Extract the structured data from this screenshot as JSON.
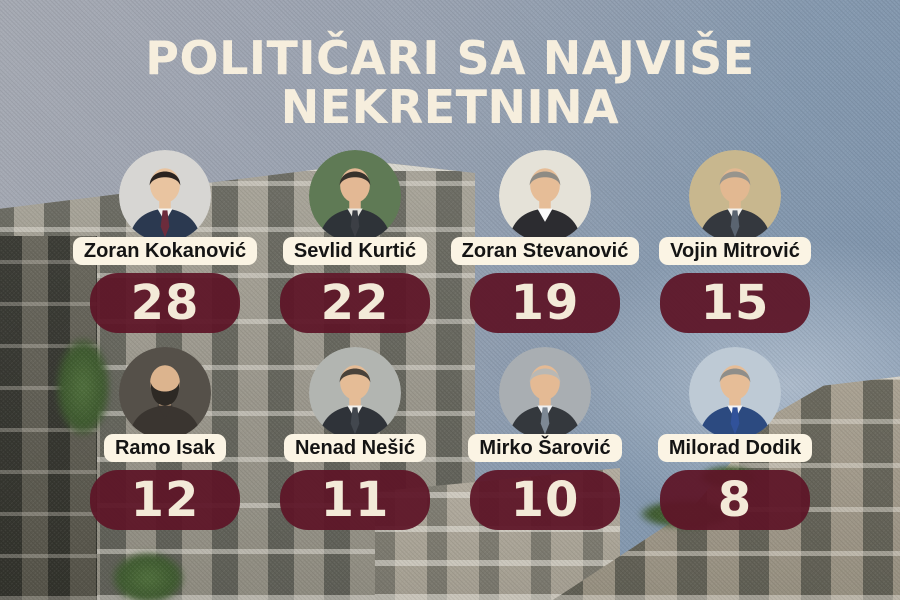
{
  "title": {
    "line1": "POLITIČARI SA NAJVIŠE",
    "line2": "NEKRETNINA"
  },
  "chart_data": {
    "type": "table",
    "title": "POLITIČARI SA NAJVIŠE NEKRETNINA",
    "categories": [
      "Zoran Kokanović",
      "Sevlid Kurtić",
      "Zoran Stevanović",
      "Vojin Mitrović",
      "Ramo Isak",
      "Nenad Nešić",
      "Mirko Šarović",
      "Milorad Dodik"
    ],
    "values": [
      28,
      22,
      19,
      15,
      12,
      11,
      10,
      8
    ],
    "layout": "2 rows x 4 columns, ranked descending left-to-right, top-to-bottom"
  },
  "politicians": [
    {
      "name": "Zoran Kokanović",
      "value": "28",
      "avatar": {
        "bg": "#d7d6d3",
        "hair": "#2a2320",
        "skin": "#e9c4a0",
        "suit": "#2b3950",
        "shirt": "#f4f4f2",
        "tie": "#6c2c3c",
        "bald": false,
        "beard": null
      }
    },
    {
      "name": "Sevlid Kurtić",
      "value": "22",
      "avatar": {
        "bg": "#5f7a55",
        "hair": "#37322c",
        "skin": "#e3b894",
        "suit": "#2e3338",
        "shirt": "#e8e6e0",
        "tie": "#3c3f45",
        "bald": false,
        "beard": null
      }
    },
    {
      "name": "Zoran Stevanović",
      "value": "19",
      "avatar": {
        "bg": "#e5e2d8",
        "hair": "#8e8b84",
        "skin": "#e6bd97",
        "suit": "#2c2c30",
        "shirt": "#fafafa",
        "tie": null,
        "bald": false,
        "beard": null
      }
    },
    {
      "name": "Vojin Mitrović",
      "value": "15",
      "avatar": {
        "bg": "#c8b78e",
        "hair": "#97948d",
        "skin": "#e2b891",
        "suit": "#34383e",
        "shirt": "#f1f0ec",
        "tie": "#5a6470",
        "bald": false,
        "beard": null
      }
    },
    {
      "name": "Ramo Isak",
      "value": "12",
      "avatar": {
        "bg": "#555049",
        "hair": null,
        "skin": "#dcb48e",
        "suit": "#3a3530",
        "shirt": "#3a3530",
        "tie": null,
        "bald": true,
        "beard": "#2d2924"
      }
    },
    {
      "name": "Nenad Nešić",
      "value": "11",
      "avatar": {
        "bg": "#b2b5b1",
        "hair": "#49423a",
        "skin": "#e5bc96",
        "suit": "#2f3339",
        "shirt": "#f2f1ed",
        "tie": "#42474e",
        "bald": false,
        "beard": null
      }
    },
    {
      "name": "Mirko Šarović",
      "value": "10",
      "avatar": {
        "bg": "#a9aeb2",
        "hair": "#b9b8b4",
        "skin": "#e4ba94",
        "suit": "#34383d",
        "shirt": "#eef0f2",
        "tie": "#7d8894",
        "bald": false,
        "beard": null
      }
    },
    {
      "name": "Milorad Dodik",
      "value": "8",
      "avatar": {
        "bg": "#becad5",
        "hair": "#8f8e8a",
        "skin": "#e6bd97",
        "suit": "#2c4a80",
        "shirt": "#f3f4f6",
        "tie": "#31529a",
        "bald": false,
        "beard": null
      }
    }
  ],
  "colors": {
    "title_text": "#f6eedd",
    "pill_bg": "rgba(94,21,39,0.94)",
    "pill_text": "#f3ead8",
    "name_bg": "#fbf4e4",
    "name_text": "#141414",
    "sky_top": "#a6aab3",
    "sky_right": "#7f94ac"
  }
}
